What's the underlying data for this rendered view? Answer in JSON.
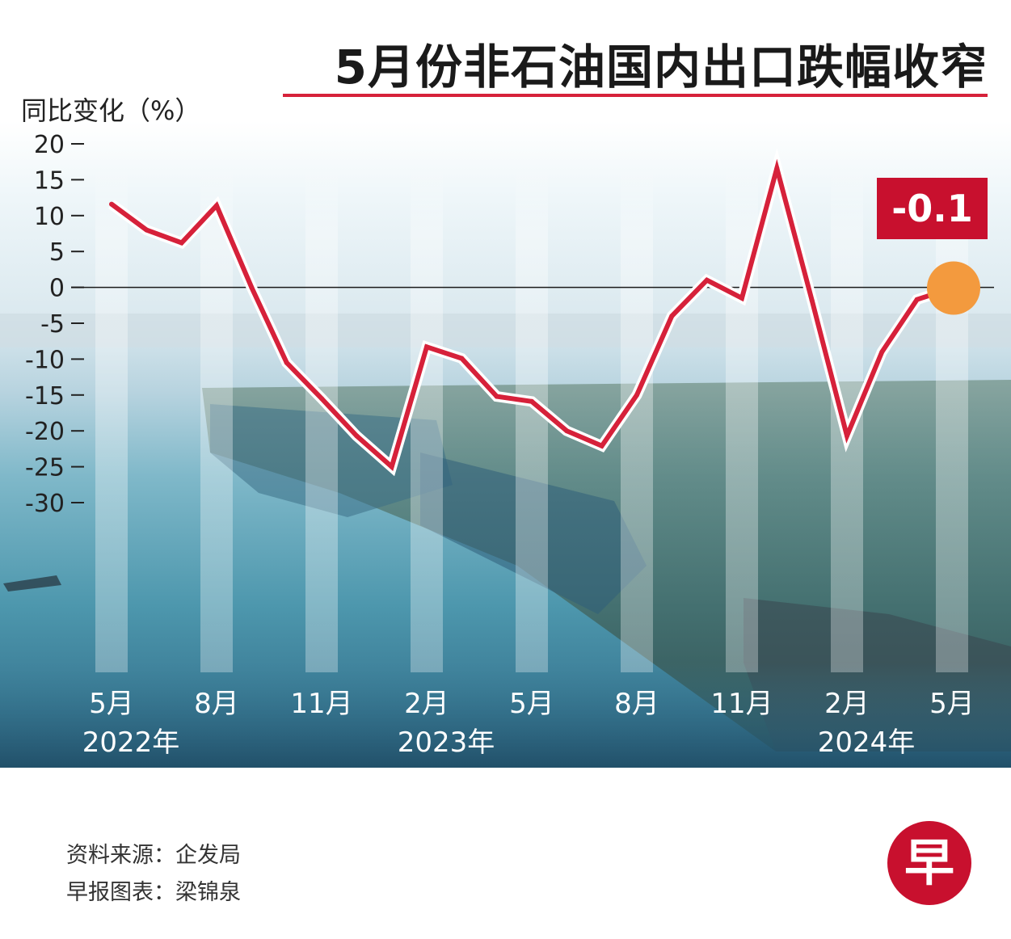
{
  "title": "5月份非石油国内出口跌幅收窄",
  "ylabel": "同比变化（%）",
  "callout": "-0.1",
  "source_lines": [
    "资料来源：企发局",
    "早报图表：梁锦泉"
  ],
  "logo_text": "早",
  "colors": {
    "line": "#d6213a",
    "line_outline": "#ffffff",
    "accent_red": "#c8102e",
    "marker": "#f39a3e",
    "sea_top": "#e3f0f6",
    "sea_bottom": "#2f6e8e"
  },
  "chart_data": {
    "type": "line",
    "title": "5月份非石油国内出口跌幅收窄",
    "ylabel": "同比变化（%）",
    "xlabel": "",
    "ylim": [
      -30,
      20
    ],
    "yticks": [
      "20",
      "15",
      "10",
      "5",
      "0",
      "-5",
      "-10",
      "-15",
      "-20",
      "-25",
      "-30"
    ],
    "x_tick_labels": [
      {
        "index": 0,
        "label": "5月",
        "year": "2022年"
      },
      {
        "index": 3,
        "label": "8月",
        "year": ""
      },
      {
        "index": 6,
        "label": "11月",
        "year": ""
      },
      {
        "index": 9,
        "label": "2月",
        "year": "2023年"
      },
      {
        "index": 12,
        "label": "5月",
        "year": ""
      },
      {
        "index": 15,
        "label": "8月",
        "year": ""
      },
      {
        "index": 18,
        "label": "11月",
        "year": ""
      },
      {
        "index": 21,
        "label": "2月",
        "year": "2024年"
      },
      {
        "index": 24,
        "label": "5月",
        "year": ""
      }
    ],
    "x": [
      "2022-05",
      "2022-06",
      "2022-07",
      "2022-08",
      "2022-09",
      "2022-10",
      "2022-11",
      "2022-12",
      "2023-01",
      "2023-02",
      "2023-03",
      "2023-04",
      "2023-05",
      "2023-06",
      "2023-07",
      "2023-08",
      "2023-09",
      "2023-10",
      "2023-11",
      "2023-12",
      "2024-01",
      "2024-02",
      "2024-03",
      "2024-04",
      "2024-05"
    ],
    "series": [
      {
        "values": [
          11.6,
          8.0,
          6.2,
          11.4,
          0.0,
          -10.5,
          -15.5,
          -20.7,
          -25.0,
          -8.3,
          -9.9,
          -15.2,
          -15.9,
          -20.0,
          -22.1,
          -15.0,
          -4.0,
          1.0,
          -1.5,
          16.6,
          -1.8,
          -20.7,
          -9.0,
          -1.7,
          -0.1
        ]
      }
    ],
    "highlight": {
      "index": 24,
      "value": -0.1,
      "label": "-0.1"
    },
    "grid": false
  }
}
